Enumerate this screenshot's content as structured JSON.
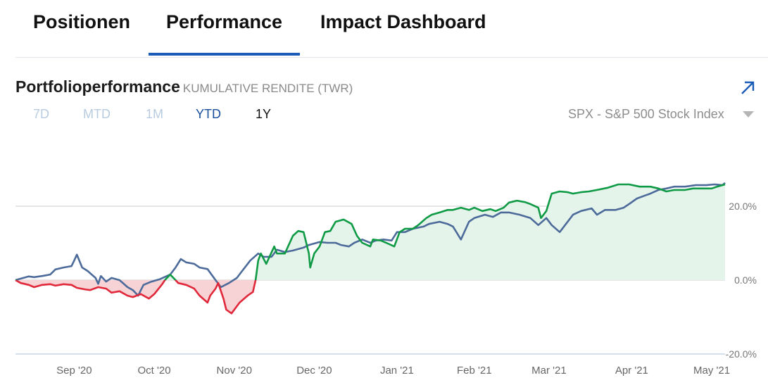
{
  "tabs": [
    {
      "label": "Positionen"
    },
    {
      "label": "Performance"
    },
    {
      "label": "Impact Dashboard"
    }
  ],
  "card": {
    "title": "Portfolioperformance",
    "subtitle": "KUMULATIVE RENDITE (TWR)",
    "expand_icon": "arrow-up-right-icon"
  },
  "ranges": [
    {
      "label": "7D"
    },
    {
      "label": "MTD"
    },
    {
      "label": "1M"
    },
    {
      "label": "YTD"
    },
    {
      "label": "1Y"
    }
  ],
  "benchmark": {
    "selected": "SPX - S&P 500 Stock Index"
  },
  "colors": {
    "positive": "#0f9a45",
    "negative": "#e0283a",
    "benchmark": "#4d6b9a",
    "pos_fill": "#e5f4ea",
    "neg_fill": "#f8d3d6",
    "accent": "#1a5bb8"
  },
  "chart_data": {
    "type": "line",
    "xlabel": "",
    "ylabel": "Kumulative Rendite",
    "ylim": [
      -20,
      30
    ],
    "xlim": [
      0,
      266
    ],
    "yticks": [
      {
        "v": 20,
        "label": "20.0%"
      },
      {
        "v": 0,
        "label": "0.0%"
      },
      {
        "v": -20,
        "label": "-20.0%"
      }
    ],
    "xticks": [
      {
        "day": 22,
        "label": "Sep '20"
      },
      {
        "day": 52,
        "label": "Oct '20"
      },
      {
        "day": 82,
        "label": "Nov '20"
      },
      {
        "day": 112,
        "label": "Dec '20"
      },
      {
        "day": 143,
        "label": "Jan '21"
      },
      {
        "day": 172,
        "label": "Feb '21"
      },
      {
        "day": 200,
        "label": "Mar '21"
      },
      {
        "day": 231,
        "label": "Apr '21"
      },
      {
        "day": 261,
        "label": "May '21"
      }
    ],
    "series": [
      {
        "name": "Portfolio",
        "x": [
          0,
          2,
          5,
          7,
          10,
          13,
          15,
          18,
          21,
          23,
          26,
          28,
          31,
          34,
          36,
          39,
          42,
          44,
          47,
          50,
          52,
          55,
          56,
          58,
          60,
          61,
          64,
          67,
          69,
          72,
          73,
          75,
          76,
          78,
          79,
          81,
          84,
          87,
          89,
          90,
          91,
          92,
          94,
          97,
          98,
          101,
          104,
          106,
          108,
          110,
          110.5,
          112,
          114,
          116,
          118,
          120,
          123,
          126,
          128,
          130,
          133,
          134,
          137,
          139,
          142,
          144,
          146,
          149,
          151,
          154,
          156,
          159,
          162,
          164,
          167,
          170,
          172,
          175,
          178,
          180,
          183,
          185,
          188,
          191,
          193,
          196,
          197,
          199,
          201,
          204,
          207,
          209,
          212,
          215,
          218,
          222,
          226,
          230,
          234,
          238,
          241,
          244,
          247,
          251,
          254,
          257,
          261,
          263,
          266
        ],
        "values": [
          0,
          -0.8,
          -1.3,
          -1.9,
          -1.3,
          -1.1,
          -1.5,
          -1.1,
          -1.3,
          -2.1,
          -2.5,
          -2.7,
          -1.9,
          -2.3,
          -3.4,
          -3.0,
          -4.2,
          -4.6,
          -3.8,
          -5.0,
          -3.8,
          -1.1,
          0,
          1.5,
          0,
          -0.8,
          -1.3,
          -2.3,
          -4.2,
          -6.1,
          -4.2,
          -2.3,
          -0.8,
          -5.1,
          -8.0,
          -9.0,
          -6.1,
          -4.2,
          -3.2,
          0,
          5.3,
          7.2,
          4.4,
          9.1,
          7.2,
          7.2,
          12.0,
          13.3,
          13.0,
          7.2,
          3.4,
          7.2,
          9.1,
          13.0,
          13.3,
          15.8,
          16.4,
          15.2,
          12.0,
          10.1,
          9.1,
          11.0,
          10.7,
          10.1,
          9.1,
          13.0,
          13.9,
          13.9,
          14.9,
          16.8,
          17.7,
          18.3,
          19.0,
          19.0,
          19.6,
          19.0,
          19.6,
          18.7,
          19.2,
          18.7,
          19.6,
          21.0,
          21.5,
          21.1,
          20.6,
          19.6,
          16.8,
          18.7,
          23.4,
          24.0,
          23.8,
          23.4,
          23.8,
          24.0,
          24.4,
          25.0,
          25.9,
          25.9,
          25.3,
          25.3,
          24.8,
          24.0,
          24.4,
          24.4,
          24.8,
          24.8,
          24.8,
          25.3,
          25.9
        ]
      },
      {
        "name": "SPX - S&P 500 Stock Index",
        "x": [
          0,
          2,
          5,
          7,
          10,
          13,
          15,
          18,
          21,
          22,
          23,
          25,
          27,
          30,
          31,
          32,
          34,
          36,
          39,
          42,
          44,
          46,
          47,
          48,
          51,
          54,
          58,
          60,
          62,
          64,
          67,
          69,
          72,
          75,
          77,
          80,
          83,
          85,
          88,
          91,
          93,
          96,
          98,
          101,
          104,
          108,
          110,
          114,
          117,
          120,
          122,
          125,
          127,
          130,
          133,
          135,
          138,
          141,
          143,
          146,
          149,
          153,
          155,
          159,
          162,
          164,
          167,
          170,
          172,
          176,
          179,
          182,
          185,
          189,
          193,
          196,
          199,
          201,
          204,
          207,
          209,
          212,
          216,
          218,
          221,
          225,
          228,
          230,
          233,
          236,
          238,
          241,
          244,
          247,
          251,
          255,
          259,
          262,
          265,
          266
        ],
        "values": [
          0,
          0.4,
          1.0,
          0.8,
          1.1,
          1.5,
          2.9,
          3.4,
          3.8,
          5.3,
          6.9,
          3.4,
          2.5,
          0.6,
          -1.0,
          1.1,
          -0.4,
          0.6,
          0,
          -1.9,
          -2.7,
          -4.2,
          -2.7,
          -1.3,
          -0.4,
          0.2,
          1.5,
          3.4,
          5.7,
          4.8,
          4.4,
          3.4,
          3.0,
          0,
          -1.9,
          -0.8,
          0.6,
          2.5,
          5.3,
          7.2,
          6.3,
          6.3,
          8.2,
          7.6,
          8.0,
          8.8,
          9.5,
          10.3,
          10.1,
          10.1,
          9.5,
          9.1,
          10.1,
          11.0,
          10.1,
          10.7,
          11.0,
          10.7,
          13.0,
          13.0,
          13.9,
          14.5,
          15.2,
          15.8,
          15.2,
          14.5,
          11.0,
          15.8,
          16.8,
          17.7,
          17.1,
          18.3,
          18.3,
          17.7,
          16.8,
          14.9,
          16.8,
          14.9,
          13.0,
          15.8,
          17.7,
          18.7,
          19.4,
          17.7,
          19.0,
          19.0,
          19.6,
          20.6,
          22.1,
          22.9,
          23.4,
          24.4,
          24.8,
          25.3,
          25.3,
          25.7,
          25.7,
          25.9,
          25.7,
          26.3
        ]
      }
    ]
  }
}
